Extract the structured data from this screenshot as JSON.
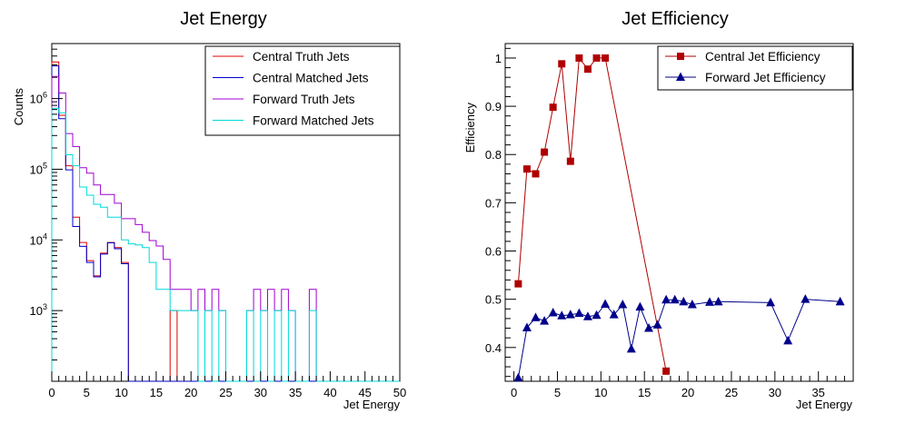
{
  "chart_data": [
    {
      "type": "histogram",
      "title": "Jet Energy",
      "xlabel": "Jet Energy",
      "ylabel": "Counts",
      "xlim": [
        0,
        50
      ],
      "ylim": [
        100,
        6000000
      ],
      "y_scale": "log",
      "x_ticks": [
        "0",
        "5",
        "10",
        "15",
        "20",
        "25",
        "30",
        "35",
        "40",
        "45",
        "50"
      ],
      "y_ticks": [
        {
          "base": "10",
          "exp": "3",
          "value": 1000
        },
        {
          "base": "10",
          "exp": "4",
          "value": 10000
        },
        {
          "base": "10",
          "exp": "5",
          "value": 100000
        },
        {
          "base": "10",
          "exp": "6",
          "value": 1000000
        }
      ],
      "legend_position": "top-right",
      "bin_width": 1,
      "series": [
        {
          "name": "Central Truth Jets",
          "color": "#e00000",
          "values": [
            3300000,
            580000,
            112000,
            21000,
            9200,
            5100,
            3100,
            6500,
            9200,
            7800,
            4800,
            0,
            0,
            0,
            0,
            0,
            0,
            1000,
            0,
            0,
            0,
            0,
            0,
            0,
            0,
            0,
            0,
            0,
            0,
            0,
            0,
            0,
            0,
            0,
            0,
            0,
            0,
            0,
            0,
            0,
            0,
            0,
            0,
            0,
            0,
            0,
            0,
            0,
            0,
            0
          ]
        },
        {
          "name": "Central Matched Jets",
          "color": "#0000cc",
          "values": [
            2900000,
            520000,
            98000,
            15500,
            8100,
            4800,
            3000,
            6300,
            9100,
            7500,
            4600,
            0,
            0,
            0,
            0,
            0,
            0,
            0,
            0,
            0,
            0,
            0,
            0,
            0,
            0,
            0,
            0,
            0,
            0,
            0,
            0,
            0,
            0,
            0,
            0,
            0,
            0,
            0,
            0,
            0,
            0,
            0,
            0,
            0,
            0,
            0,
            0,
            0,
            0,
            0
          ]
        },
        {
          "name": "Forward Truth Jets",
          "color": "#a000d0",
          "values": [
            2050000,
            1200000,
            320000,
            210000,
            105000,
            88000,
            60000,
            44000,
            44000,
            33000,
            20000,
            20000,
            16500,
            12800,
            9800,
            8200,
            5300,
            2000,
            2000,
            2000,
            1000,
            2000,
            1000,
            2000,
            1000,
            0,
            0,
            0,
            1000,
            2000,
            1000,
            2000,
            1000,
            2000,
            1000,
            0,
            0,
            2000,
            0,
            0,
            0,
            0,
            0,
            0,
            0,
            0,
            0,
            0,
            0,
            0
          ]
        },
        {
          "name": "Forward Matched Jets",
          "color": "#00d8d8",
          "values": [
            730000,
            630000,
            160000,
            112000,
            56000,
            43000,
            32000,
            29000,
            21000,
            21000,
            10000,
            8800,
            8500,
            7800,
            4800,
            2000,
            2000,
            1000,
            1000,
            1000,
            1000,
            0,
            1000,
            0,
            1000,
            0,
            0,
            0,
            1000,
            0,
            1000,
            0,
            1000,
            0,
            1000,
            0,
            0,
            1000,
            0,
            0,
            0,
            0,
            0,
            0,
            0,
            0,
            0,
            0,
            0,
            0
          ]
        }
      ]
    },
    {
      "type": "line",
      "title": "Jet Efficiency",
      "xlabel": "Jet Energy",
      "ylabel": "Efficiency",
      "xlim": [
        -1,
        39
      ],
      "ylim": [
        0.33,
        1.03
      ],
      "x_ticks": [
        "0",
        "5",
        "10",
        "15",
        "20",
        "25",
        "30",
        "35"
      ],
      "y_ticks": [
        "0.4",
        "0.5",
        "0.6",
        "0.7",
        "0.8",
        "0.9",
        "1"
      ],
      "legend_position": "top-right",
      "series": [
        {
          "name": "Central Jet Efficiency",
          "color": "#b00000",
          "marker": "square",
          "x": [
            0.5,
            1.5,
            2.5,
            3.5,
            4.5,
            5.5,
            6.5,
            7.5,
            8.5,
            9.5,
            10.5,
            17.5
          ],
          "y": [
            0.532,
            0.77,
            0.76,
            0.805,
            0.898,
            0.988,
            0.786,
            1.0,
            0.977,
            1.0,
            1.0,
            0.351
          ]
        },
        {
          "name": "Forward Jet Efficiency",
          "color": "#00008b",
          "marker": "triangle",
          "x": [
            0.5,
            1.5,
            2.5,
            3.5,
            4.5,
            5.5,
            6.5,
            7.5,
            8.5,
            9.5,
            10.5,
            11.5,
            12.5,
            13.5,
            14.5,
            15.5,
            16.5,
            17.5,
            18.5,
            19.5,
            20.5,
            22.5,
            23.5,
            29.5,
            31.5,
            33.5,
            37.5
          ],
          "y": [
            0.337,
            0.441,
            0.462,
            0.455,
            0.472,
            0.466,
            0.468,
            0.471,
            0.464,
            0.467,
            0.49,
            0.468,
            0.489,
            0.397,
            0.484,
            0.44,
            0.447,
            0.499,
            0.499,
            0.495,
            0.489,
            0.494,
            0.495,
            0.493,
            0.414,
            0.5,
            0.495
          ]
        }
      ]
    }
  ]
}
